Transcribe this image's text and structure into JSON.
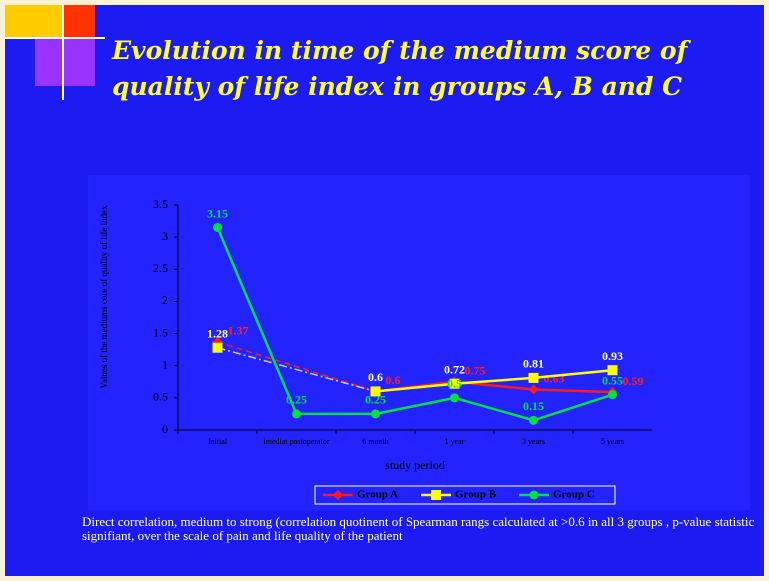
{
  "title": "Evolution in time of the medium score of quality of life index in groups A, B and C",
  "chart_data": {
    "type": "line",
    "ylabel": "Values of the mediums core of quality of life index",
    "xlabel": "study period",
    "categories": [
      "Initial",
      "imediat postoperator",
      "6 month",
      "1 year",
      "3 years",
      "5 years"
    ],
    "series": [
      {
        "name": "Group A",
        "color": "#ff1a1a",
        "values": [
          1.37,
          null,
          0.6,
          0.75,
          0.63,
          0.59
        ]
      },
      {
        "name": "Group B",
        "color": "#ffff00",
        "values": [
          1.28,
          null,
          0.6,
          0.72,
          0.81,
          0.93
        ]
      },
      {
        "name": "Group C",
        "color": "#00e040",
        "values": [
          3.15,
          0.25,
          0.25,
          0.5,
          0.15,
          0.55
        ]
      }
    ],
    "ylim": [
      0,
      3.5
    ],
    "yticks": [
      0,
      0.5,
      1,
      1.5,
      2,
      2.5,
      3,
      3.5
    ]
  },
  "footer": "Direct correlation, medium to strong (correlation quotinent of Spearman rangs calculated at >0.6 in all 3 groups , p-value statistic signifiant, over the scale of pain and life quality of the patient"
}
